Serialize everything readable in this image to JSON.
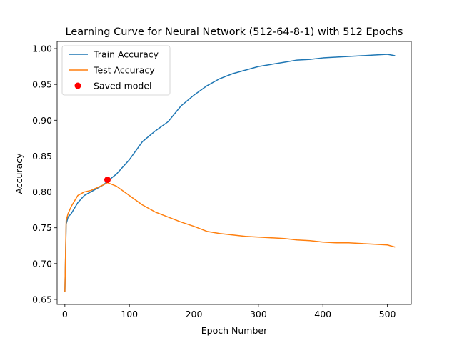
{
  "chart_data": {
    "type": "line",
    "title": "Learning Curve for Neural Network (512-64-8-1) with 512 Epochs",
    "xlabel": "Epoch Number",
    "ylabel": "Accuracy",
    "xlim": [
      -12,
      537
    ],
    "ylim": [
      0.643,
      1.01
    ],
    "xticks": [
      0,
      100,
      200,
      300,
      400,
      500
    ],
    "yticks": [
      0.65,
      0.7,
      0.75,
      0.8,
      0.85,
      0.9,
      0.95,
      1.0
    ],
    "ytick_labels": [
      "0.65",
      "0.70",
      "0.75",
      "0.80",
      "0.85",
      "0.90",
      "0.95",
      "1.00"
    ],
    "grid": false,
    "legend_position": "upper-left",
    "series": [
      {
        "name": "Train Accuracy",
        "color": "#1f77b4",
        "x": [
          0,
          2,
          5,
          10,
          20,
          30,
          40,
          50,
          60,
          66,
          80,
          100,
          120,
          140,
          160,
          180,
          200,
          220,
          240,
          260,
          280,
          300,
          320,
          340,
          360,
          380,
          400,
          420,
          440,
          460,
          480,
          500,
          512
        ],
        "y": [
          0.66,
          0.755,
          0.765,
          0.77,
          0.785,
          0.795,
          0.8,
          0.805,
          0.81,
          0.815,
          0.825,
          0.845,
          0.87,
          0.885,
          0.898,
          0.92,
          0.935,
          0.948,
          0.958,
          0.965,
          0.97,
          0.975,
          0.978,
          0.981,
          0.984,
          0.985,
          0.987,
          0.988,
          0.989,
          0.99,
          0.991,
          0.992,
          0.99
        ]
      },
      {
        "name": "Test Accuracy",
        "color": "#ff7f0e",
        "x": [
          0,
          2,
          5,
          10,
          20,
          30,
          40,
          50,
          60,
          66,
          80,
          100,
          120,
          140,
          160,
          180,
          200,
          220,
          240,
          260,
          280,
          300,
          320,
          340,
          360,
          380,
          400,
          420,
          440,
          460,
          480,
          500,
          512
        ],
        "y": [
          0.66,
          0.76,
          0.77,
          0.78,
          0.795,
          0.8,
          0.802,
          0.806,
          0.81,
          0.813,
          0.808,
          0.795,
          0.782,
          0.772,
          0.765,
          0.758,
          0.752,
          0.745,
          0.742,
          0.74,
          0.738,
          0.737,
          0.736,
          0.735,
          0.733,
          0.732,
          0.73,
          0.729,
          0.729,
          0.728,
          0.727,
          0.726,
          0.723
        ]
      }
    ],
    "markers": [
      {
        "name": "Saved model",
        "color": "#ff0000",
        "x": 66,
        "y": 0.817
      }
    ]
  }
}
